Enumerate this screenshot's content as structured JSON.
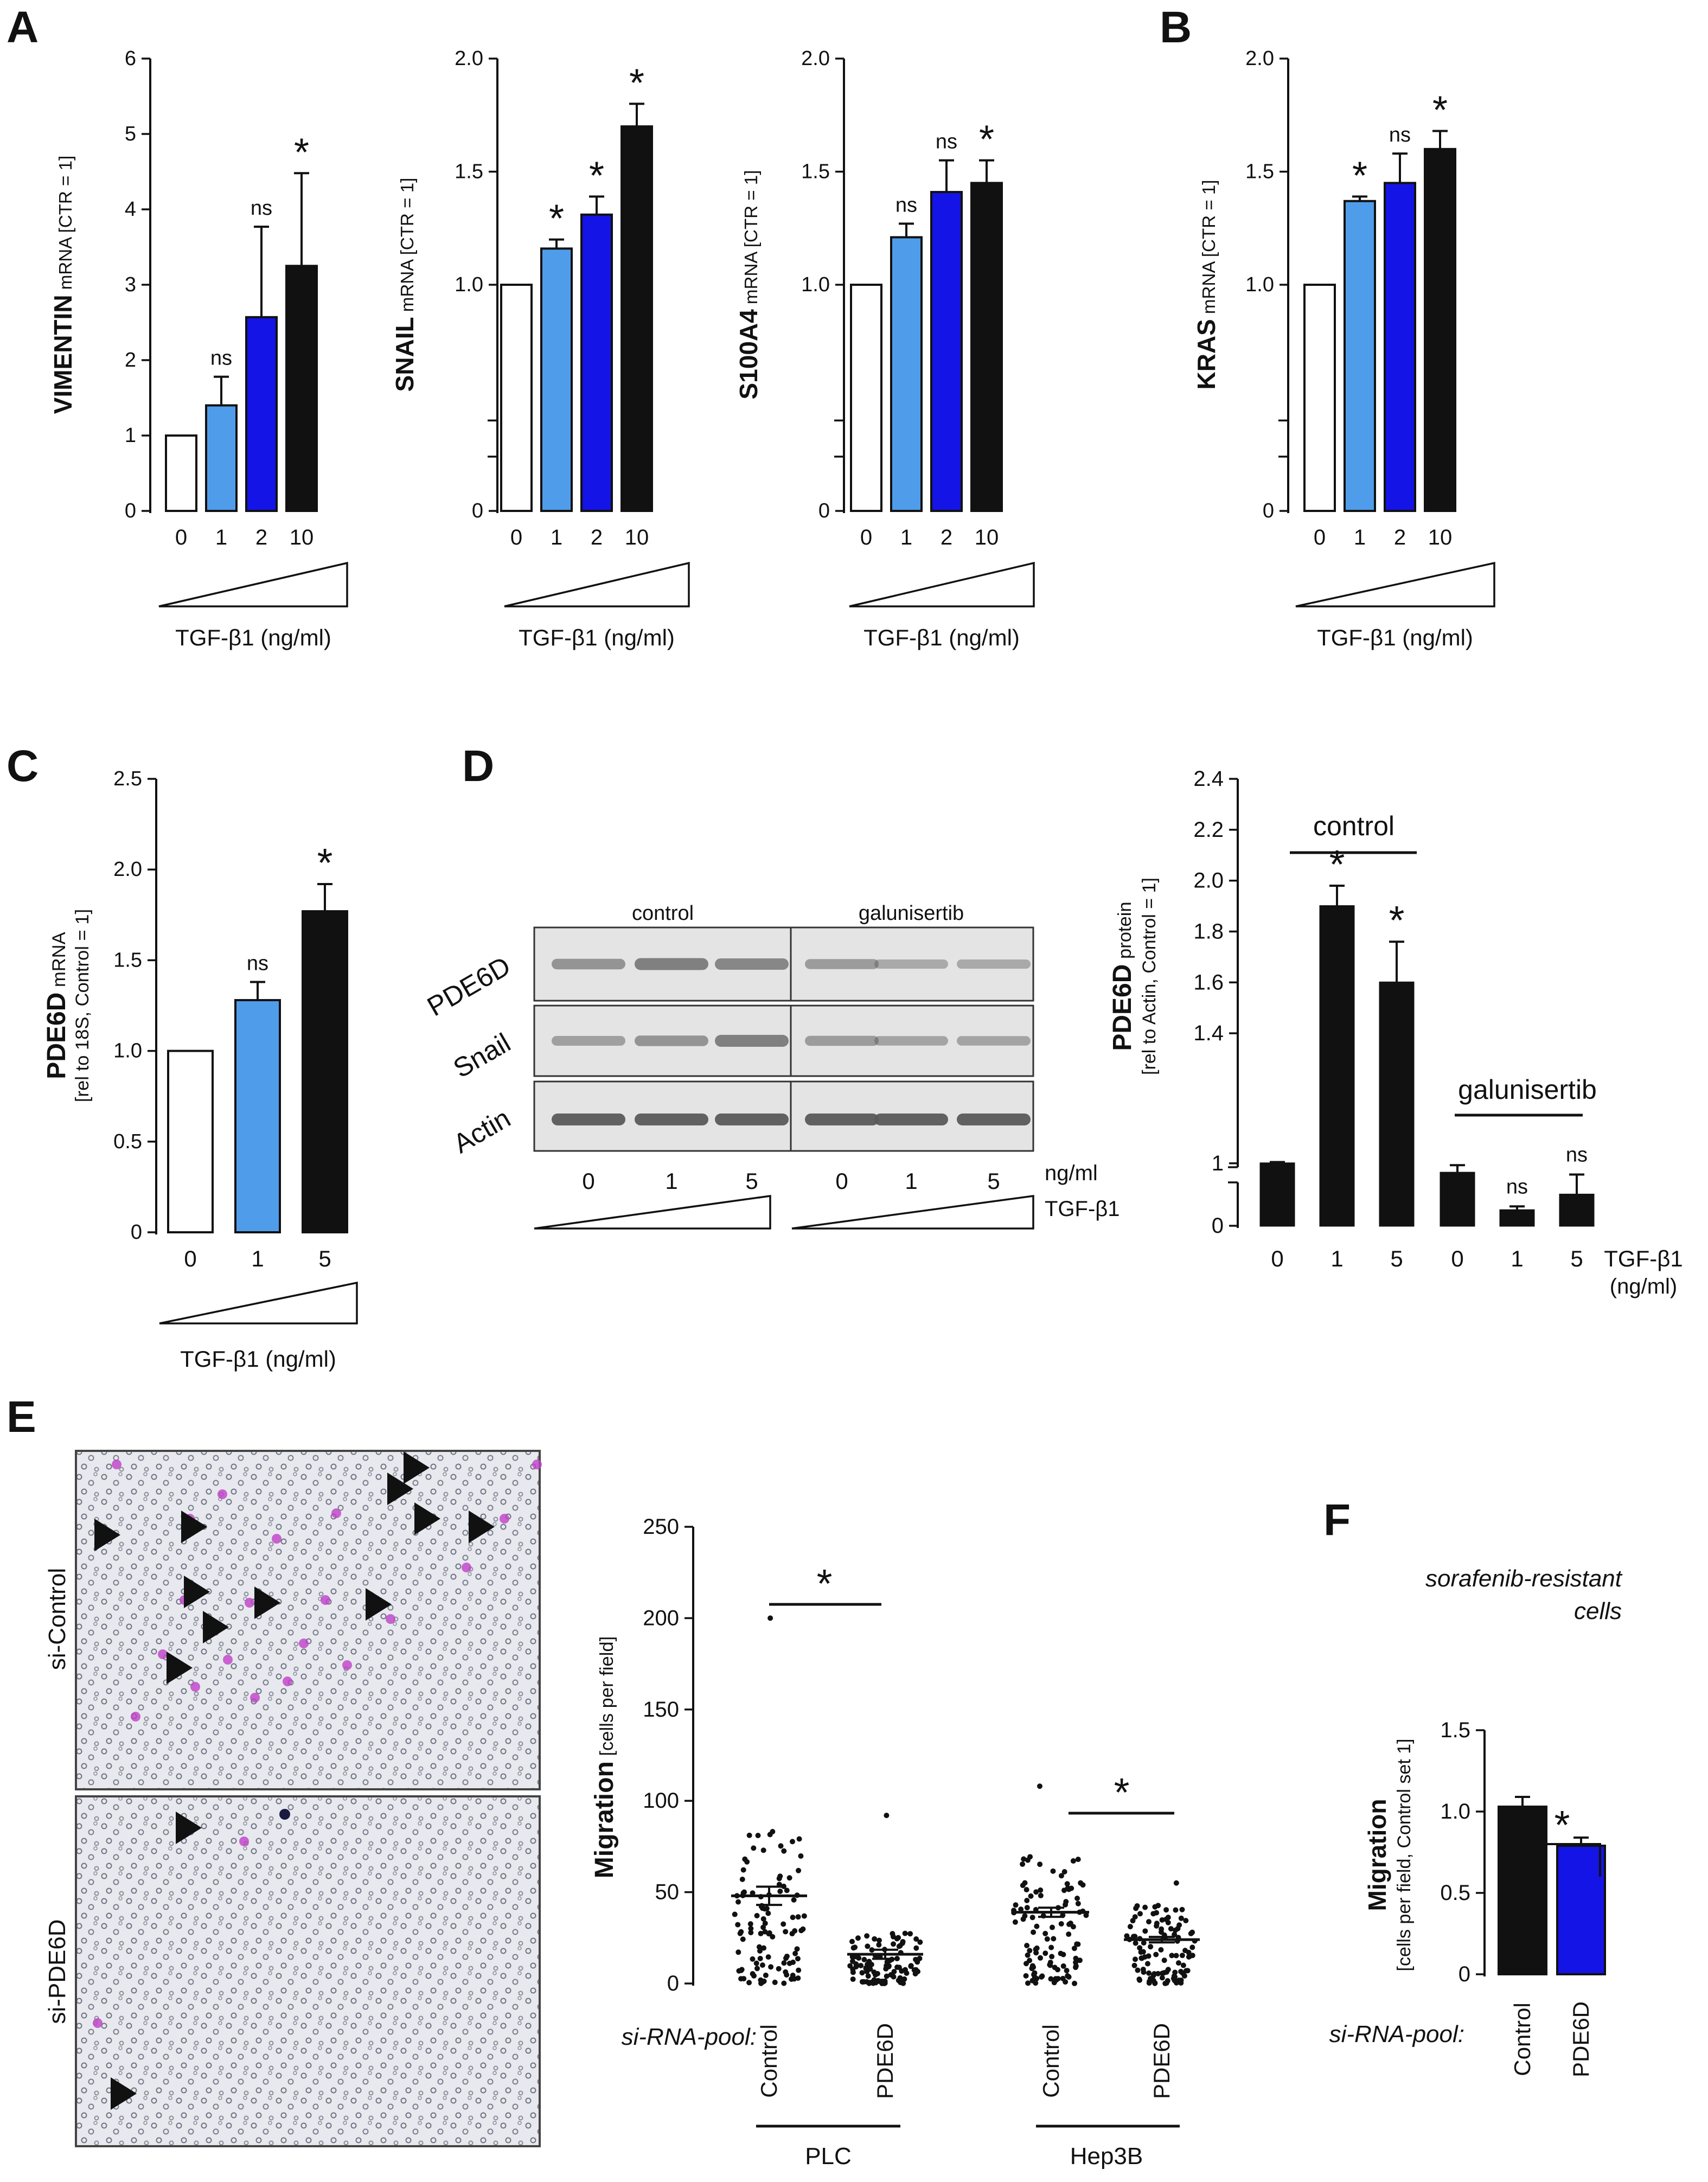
{
  "colors": {
    "white": "#ffffff",
    "light_blue": "#4f9dea",
    "blue": "#1414e6",
    "black": "#111111",
    "magenta": "#c040c8",
    "micro_bg": "#e6e8ee",
    "blot_bg": "#e4e4e4",
    "band": "#5a5a5a"
  },
  "panels": {
    "A": "A",
    "B": "B",
    "C": "C",
    "D": "D",
    "E": "E",
    "F": "F"
  },
  "chart_data": [
    {
      "id": "vimentin",
      "type": "bar",
      "title": "",
      "ylabel_bold": "VIMENTIN",
      "ylabel_rest": " mRNA [CTR = 1]",
      "categories": [
        "0",
        "1",
        "2",
        "10"
      ],
      "values": [
        1.0,
        1.4,
        2.57,
        3.25
      ],
      "errors": [
        0,
        0.38,
        1.2,
        1.23
      ],
      "sig": [
        "",
        "ns",
        "ns",
        "*"
      ],
      "colors": [
        "white",
        "light_blue",
        "blue",
        "black"
      ],
      "ylim": [
        0,
        6
      ],
      "ticks": [
        0,
        1,
        2,
        3,
        4,
        5,
        6
      ],
      "tick_labels": [
        "0",
        "1",
        "2",
        "3",
        "4",
        "5",
        "6"
      ],
      "xlabel": "TGF-β1  (ng/ml)"
    },
    {
      "id": "snail",
      "type": "bar",
      "ylabel_bold": "SNAIL",
      "ylabel_rest": " mRNA [CTR = 1]",
      "categories": [
        "0",
        "1",
        "2",
        "10"
      ],
      "values": [
        1.0,
        1.16,
        1.31,
        1.7
      ],
      "errors": [
        0,
        0.04,
        0.08,
        0.1
      ],
      "sig": [
        "",
        "*",
        "*",
        "*"
      ],
      "colors": [
        "white",
        "light_blue",
        "blue",
        "black"
      ],
      "ylim": [
        0,
        2.0
      ],
      "ticks": [
        0,
        1.0,
        1.5,
        2.0
      ],
      "tick_labels": [
        "0",
        "1.0",
        "1.5",
        "2.0"
      ],
      "axis_break": true,
      "xlabel": "TGF-β1  (ng/ml)"
    },
    {
      "id": "s100a4",
      "type": "bar",
      "ylabel_bold": "S100A4",
      "ylabel_rest": " mRNA [CTR = 1]",
      "categories": [
        "0",
        "1",
        "2",
        "10"
      ],
      "values": [
        1.0,
        1.21,
        1.41,
        1.45
      ],
      "errors": [
        0,
        0.06,
        0.14,
        0.1
      ],
      "sig": [
        "",
        "ns",
        "ns",
        "*"
      ],
      "colors": [
        "white",
        "light_blue",
        "blue",
        "black"
      ],
      "ylim": [
        0,
        2.0
      ],
      "ticks": [
        0,
        1.0,
        1.5,
        2.0
      ],
      "tick_labels": [
        "0",
        "1.0",
        "1.5",
        "2.0"
      ],
      "axis_break": true,
      "xlabel": "TGF-β1  (ng/ml)"
    },
    {
      "id": "kras",
      "type": "bar",
      "ylabel_bold": "KRAS",
      "ylabel_rest": " mRNA [CTR = 1]",
      "categories": [
        "0",
        "1",
        "2",
        "10"
      ],
      "values": [
        1.0,
        1.37,
        1.45,
        1.6
      ],
      "errors": [
        0,
        0.02,
        0.13,
        0.08
      ],
      "sig": [
        "",
        "*",
        "ns",
        "*"
      ],
      "colors": [
        "white",
        "light_blue",
        "blue",
        "black"
      ],
      "ylim": [
        0,
        2.0
      ],
      "ticks": [
        0,
        1.0,
        1.5,
        2.0
      ],
      "tick_labels": [
        "0",
        "1.0",
        "1.5",
        "2.0"
      ],
      "axis_break": true,
      "xlabel": "TGF-β1  (ng/ml)"
    },
    {
      "id": "pde6d_mrna",
      "type": "bar",
      "ylabel_bold": "PDE6D",
      "ylabel_rest": " mRNA",
      "ylabel_sub": "[rel to 18S, Control = 1]",
      "categories": [
        "0",
        "1",
        "5"
      ],
      "values": [
        1.0,
        1.28,
        1.77
      ],
      "errors": [
        0,
        0.1,
        0.15
      ],
      "sig": [
        "",
        "ns",
        "*"
      ],
      "colors": [
        "white",
        "light_blue",
        "black"
      ],
      "ylim": [
        0,
        2.5
      ],
      "ticks": [
        0,
        0.5,
        1.0,
        1.5,
        2.0,
        2.5
      ],
      "tick_labels": [
        "0",
        "0.5",
        "1.0",
        "1.5",
        "2.0",
        "2.5"
      ],
      "xlabel": "TGF-β1  (ng/ml)"
    },
    {
      "id": "pde6d_protein",
      "type": "bar",
      "ylabel_bold": "PDE6D",
      "ylabel_rest": " protein",
      "ylabel_sub": "[rel to Actin, Control = 1]",
      "categories": [
        "0",
        "1",
        "5",
        "0",
        "1",
        "5"
      ],
      "values": [
        1.0,
        1.9,
        1.6,
        0.85,
        0.25,
        0.5
      ],
      "errors": [
        0.02,
        0.08,
        0.16,
        0.12,
        0.06,
        0.32
      ],
      "sig": [
        "",
        "*",
        "*",
        "",
        "ns",
        "ns"
      ],
      "colors": [
        "black",
        "black",
        "black",
        "black",
        "black",
        "black"
      ],
      "groups": [
        "control",
        "galunisertib"
      ],
      "upper_ticks": [
        1.4,
        1.6,
        1.8,
        2.0,
        2.2,
        2.4
      ],
      "upper_tick_labels": [
        "1.4",
        "1.6",
        "1.8",
        "2.0",
        "2.2",
        "2.4"
      ],
      "lower_ticks": [
        0,
        1
      ],
      "lower_tick_labels": [
        "0",
        "1"
      ],
      "xlabel": "TGF-β1",
      "xunit": "(ng/ml)"
    },
    {
      "id": "migration_scatter",
      "type": "scatter",
      "ylabel_bold": "Migration",
      "ylabel_rest": " [cells per field]",
      "categories": [
        "Control",
        "PDE6D",
        "Control",
        "PDE6D"
      ],
      "groups": [
        "PLC",
        "Hep3B"
      ],
      "means": [
        48,
        16,
        39,
        24
      ],
      "sems": [
        5,
        2.5,
        2.5,
        1.5
      ],
      "max_values": [
        200,
        92,
        108,
        55
      ],
      "n_points": [
        110,
        110,
        110,
        110
      ],
      "sig": [
        "*",
        "*"
      ],
      "ylim": [
        0,
        250
      ],
      "ticks": [
        0,
        50,
        100,
        150,
        200,
        250
      ],
      "tick_labels": [
        "0",
        "50",
        "100",
        "150",
        "200",
        "250"
      ],
      "row_label": "si-RNA-pool:"
    },
    {
      "id": "migration_sorafenib",
      "type": "bar",
      "title_line1": "sorafenib-resistant",
      "title_line2": "cells",
      "ylabel_bold": "Migration",
      "ylabel_sub": "[cells per field, Control set 1]",
      "categories": [
        "Control",
        "PDE6D"
      ],
      "values": [
        1.03,
        0.79
      ],
      "errors": [
        0.06,
        0.05
      ],
      "sig": "*",
      "colors": [
        "black",
        "blue"
      ],
      "ylim": [
        0,
        1.5
      ],
      "ticks": [
        0,
        0.5,
        1.0,
        1.5
      ],
      "tick_labels": [
        "0",
        "0.5",
        "1.0",
        "1.5"
      ],
      "row_label": "si-RNA-pool:"
    }
  ],
  "blot": {
    "groups": [
      "control",
      "galunisertib"
    ],
    "rows": [
      "PDE6D",
      "Snail",
      "Actin"
    ],
    "lanes": [
      "0",
      "1",
      "5",
      "0",
      "1",
      "5"
    ],
    "unit": "ng/ml",
    "treatment": "TGF-β1",
    "intensity": {
      "PDE6D": [
        0.55,
        0.8,
        0.7,
        0.45,
        0.3,
        0.3
      ],
      "Snail": [
        0.4,
        0.55,
        0.8,
        0.45,
        0.35,
        0.35
      ],
      "Actin": [
        1.0,
        1.0,
        1.0,
        1.0,
        1.0,
        1.0
      ]
    }
  },
  "micrographs": {
    "top_label": "si-Control",
    "bottom_label": "si-PDE6D"
  }
}
